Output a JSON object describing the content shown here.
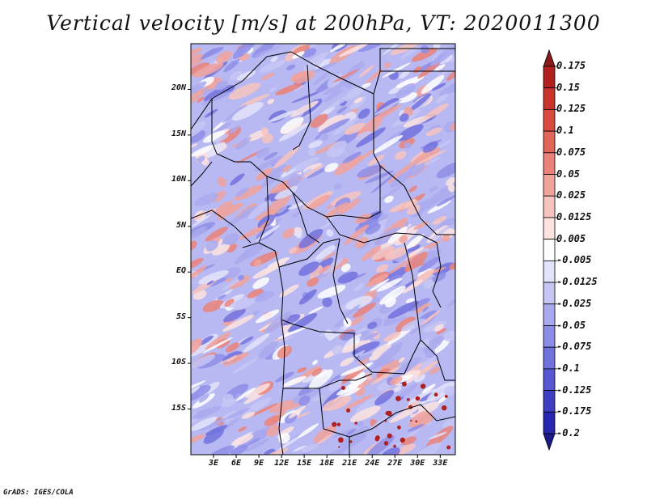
{
  "title": "Vertical velocity [m/s] at 200hPa, VT: 2020011300",
  "credit": "GrADS: IGES/COLA",
  "map": {
    "lon_range": [
      0,
      35
    ],
    "lat_range": [
      -20,
      25
    ],
    "lat_labels": [
      "20N",
      "15N",
      "10N",
      "5N",
      "EQ",
      "5S",
      "10S",
      "15S"
    ],
    "lat_values": [
      20,
      15,
      10,
      5,
      0,
      -5,
      -10,
      -15
    ],
    "lon_labels": [
      "3E",
      "6E",
      "9E",
      "12E",
      "15E",
      "18E",
      "21E",
      "24E",
      "27E",
      "30E",
      "33E"
    ],
    "lon_values": [
      3,
      6,
      9,
      12,
      15,
      18,
      21,
      24,
      27,
      30,
      33
    ]
  },
  "colorbar": {
    "labels": [
      "0.175",
      "0.15",
      "0.125",
      "0.1",
      "0.075",
      "0.05",
      "0.025",
      "0.0125",
      "0.005",
      "-0.005",
      "-0.0125",
      "-0.025",
      "-0.05",
      "-0.075",
      "-0.1",
      "-0.125",
      "-0.175",
      "-0.2"
    ],
    "colors": [
      "#8b1a1a",
      "#b0201f",
      "#c8332c",
      "#d84a40",
      "#e2655a",
      "#ea8279",
      "#f1a29b",
      "#f7c4bf",
      "#fce3e0",
      "#ffffff",
      "#e3e3fb",
      "#c6c6f6",
      "#a9a9ef",
      "#8d8de8",
      "#7272de",
      "#5757d2",
      "#3e3ec2",
      "#2626ae",
      "#1a1a8c"
    ]
  }
}
